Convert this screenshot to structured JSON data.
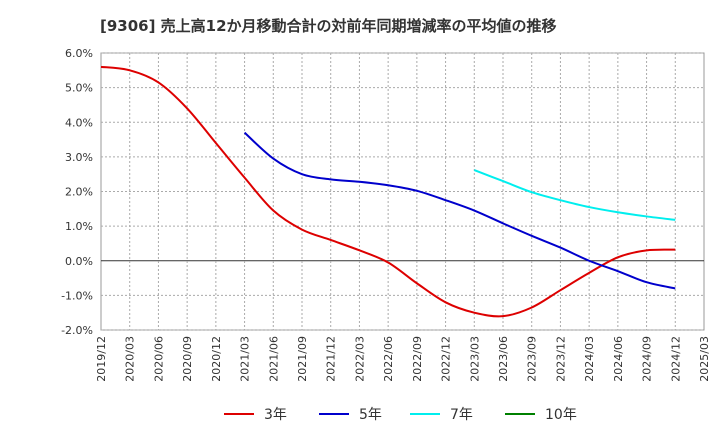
{
  "chart_data": {
    "type": "line",
    "title": "[9306]  売上高12か月移動合計の対前年同期増減率の平均値の推移",
    "xlabel": "",
    "ylabel": "",
    "x_ticks": [
      "2019/12",
      "2020/03",
      "2020/06",
      "2020/09",
      "2020/12",
      "2021/03",
      "2021/06",
      "2021/09",
      "2021/12",
      "2022/03",
      "2022/06",
      "2022/09",
      "2022/12",
      "2023/03",
      "2023/06",
      "2023/09",
      "2023/12",
      "2024/03",
      "2024/06",
      "2024/09",
      "2024/12",
      "2025/03"
    ],
    "y_ticks": [
      "6.0%",
      "5.0%",
      "4.0%",
      "3.0%",
      "2.0%",
      "1.0%",
      "0.0%",
      "-1.0%",
      "-2.0%"
    ],
    "ylim": [
      -2.0,
      6.0
    ],
    "grid": true,
    "legend_position": "bottom",
    "series": [
      {
        "name": "3年",
        "color": "#dd0000",
        "x": [
          "2019/12",
          "2020/03",
          "2020/06",
          "2020/09",
          "2020/12",
          "2021/03",
          "2021/06",
          "2021/09",
          "2021/12",
          "2022/03",
          "2022/06",
          "2022/09",
          "2022/12",
          "2023/03",
          "2023/06",
          "2023/09",
          "2023/12",
          "2024/03",
          "2024/06",
          "2024/09",
          "2024/12"
        ],
        "values": [
          5.6,
          5.5,
          5.15,
          4.4,
          3.4,
          2.4,
          1.45,
          0.9,
          0.6,
          0.3,
          -0.05,
          -0.65,
          -1.2,
          -1.5,
          -1.6,
          -1.35,
          -0.85,
          -0.35,
          0.1,
          0.3,
          0.32
        ]
      },
      {
        "name": "5年",
        "color": "#0000cc",
        "x": [
          "2021/03",
          "2021/06",
          "2021/09",
          "2021/12",
          "2022/03",
          "2022/06",
          "2022/09",
          "2022/12",
          "2023/03",
          "2023/06",
          "2023/09",
          "2023/12",
          "2024/03",
          "2024/06",
          "2024/09",
          "2024/12"
        ],
        "values": [
          3.7,
          2.95,
          2.5,
          2.35,
          2.28,
          2.18,
          2.02,
          1.75,
          1.45,
          1.08,
          0.72,
          0.38,
          0.0,
          -0.3,
          -0.62,
          -0.8
        ]
      },
      {
        "name": "7年",
        "color": "#00eeee",
        "x": [
          "2023/03",
          "2023/06",
          "2023/09",
          "2023/12",
          "2024/03",
          "2024/06",
          "2024/09",
          "2024/12"
        ],
        "values": [
          2.62,
          2.3,
          1.98,
          1.75,
          1.55,
          1.4,
          1.28,
          1.18
        ]
      },
      {
        "name": "10年",
        "color": "#008000",
        "x": [],
        "values": []
      }
    ]
  }
}
